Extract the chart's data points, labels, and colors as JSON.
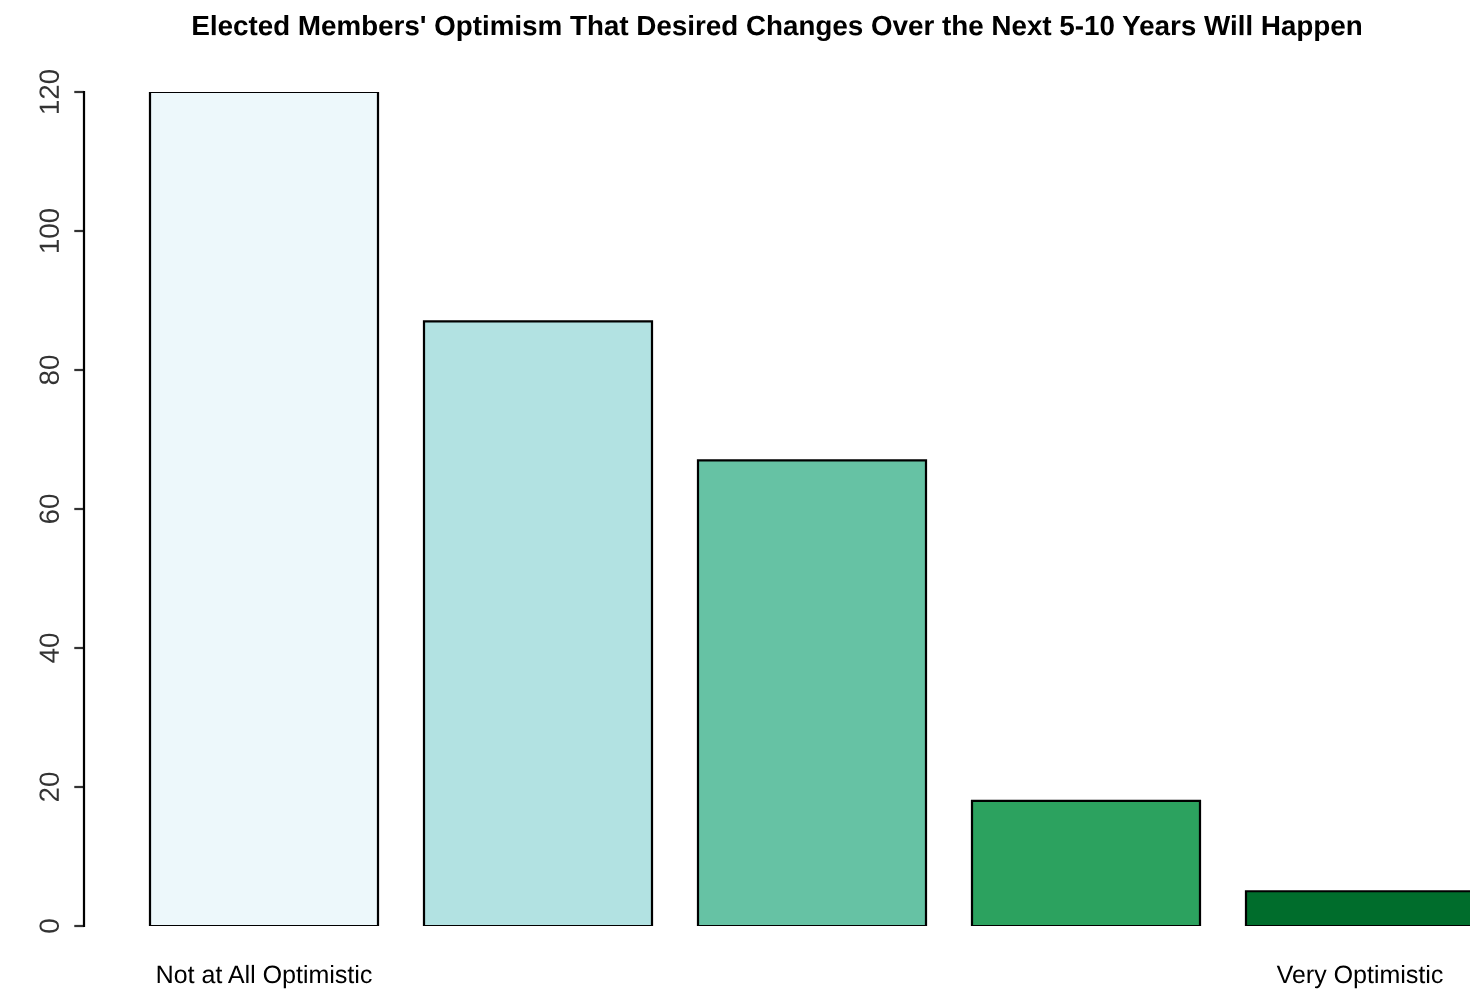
{
  "chart_data": {
    "type": "bar",
    "title": "Elected Members' Optimism That Desired Changes Over the Next 5-10 Years Will Happen",
    "categories": [
      "Not at All Optimistic",
      null,
      null,
      null,
      "Very Optimistic"
    ],
    "values": [
      120,
      87,
      67,
      18,
      5
    ],
    "colors": [
      "#edf8fb",
      "#b2e2e2",
      "#66c2a4",
      "#2ca25f",
      "#006d2c"
    ],
    "ylim": [
      0,
      120
    ],
    "yticks": [
      0,
      20,
      40,
      60,
      80,
      100,
      120
    ],
    "grid": false,
    "legend": false
  }
}
